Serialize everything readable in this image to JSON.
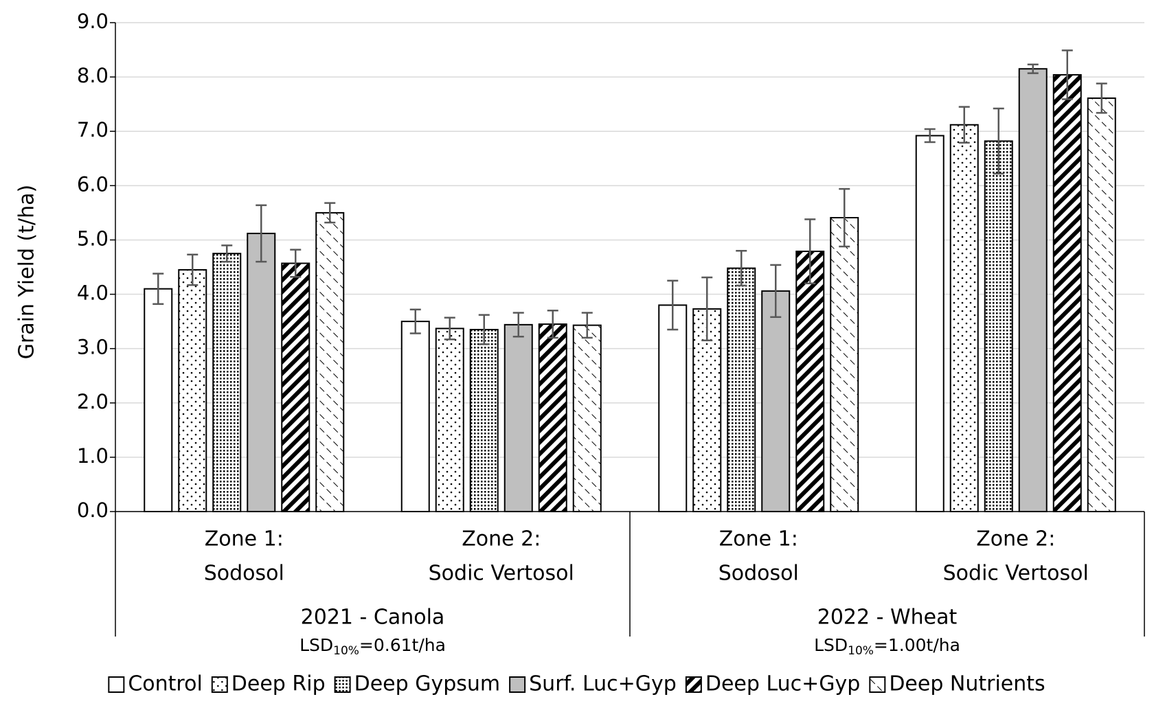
{
  "chart_data": {
    "type": "bar",
    "y_label": "Grain Yield (t/ha)",
    "categories": [
      [
        "Zone 1:",
        "Sodosol"
      ],
      [
        "Zone 2:",
        "Sodic Vertosol"
      ],
      [
        "Zone 1:",
        "Sodosol"
      ],
      [
        "Zone 2:",
        "Sodic Vertosol"
      ]
    ],
    "groups": [
      {
        "label": "2021 - Canola",
        "note": {
          "text": "LSD",
          "sub": "10%",
          "rest": "=0.61t/ha"
        }
      },
      {
        "label": "2022 - Wheat",
        "note": {
          "text": "LSD",
          "sub": "10%",
          "rest": "=1.00t/ha"
        }
      }
    ],
    "series": [
      {
        "name": "Control",
        "color": "#ffffff",
        "pattern": "none",
        "values": [
          4.1,
          3.5,
          3.8,
          6.92
        ],
        "errors": [
          0.28,
          0.22,
          0.45,
          0.12
        ]
      },
      {
        "name": "Deep Rip",
        "color": "#ffffff",
        "pattern": "dots",
        "values": [
          4.45,
          3.37,
          3.73,
          7.12
        ],
        "errors": [
          0.28,
          0.2,
          0.58,
          0.33
        ]
      },
      {
        "name": "Deep Gypsum",
        "color": "#ffffff",
        "pattern": "dense-dots",
        "values": [
          4.75,
          3.35,
          4.48,
          6.82
        ],
        "errors": [
          0.15,
          0.27,
          0.32,
          0.6
        ]
      },
      {
        "name": "Surf. Luc+Gyp",
        "color": "#bfbfbf",
        "pattern": "none",
        "values": [
          5.12,
          3.44,
          4.06,
          8.15
        ],
        "errors": [
          0.52,
          0.22,
          0.48,
          0.08
        ]
      },
      {
        "name": "Deep Luc+Gyp",
        "color": "#ffffff",
        "pattern": "stripes",
        "values": [
          4.57,
          3.45,
          4.79,
          8.04
        ],
        "errors": [
          0.25,
          0.25,
          0.59,
          0.45
        ]
      },
      {
        "name": "Deep Nutrients",
        "color": "#ffffff",
        "pattern": "zigzag",
        "values": [
          5.5,
          3.43,
          5.41,
          7.61
        ],
        "errors": [
          0.18,
          0.23,
          0.53,
          0.27
        ]
      }
    ],
    "ylim": [
      0,
      9
    ],
    "yticks": [
      {
        "value": 0,
        "label": "0.0"
      },
      {
        "value": 1,
        "label": "1.0"
      },
      {
        "value": 2,
        "label": "2.0"
      },
      {
        "value": 3,
        "label": "3.0"
      },
      {
        "value": 4,
        "label": "4.0"
      },
      {
        "value": 5,
        "label": "5.0"
      },
      {
        "value": 6,
        "label": "6.0"
      },
      {
        "value": 7,
        "label": "7.0"
      },
      {
        "value": 8,
        "label": "8.0"
      },
      {
        "value": 9,
        "label": "9.0"
      }
    ],
    "grid": true,
    "error_color": "#595959"
  }
}
